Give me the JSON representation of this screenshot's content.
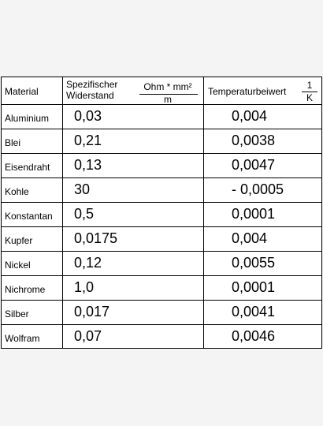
{
  "header": {
    "material": "Material",
    "resistance_line1": "Spezifischer",
    "resistance_line2": "Widerstand",
    "resistance_unit_num": "Ohm * mm²",
    "resistance_unit_den": "m",
    "temp_label": "Temperaturbeiwert",
    "temp_unit_num": "1",
    "temp_unit_den": "K"
  },
  "rows": [
    {
      "material": "Aluminium",
      "resistance": "0,03",
      "temp": "0,004"
    },
    {
      "material": "Blei",
      "resistance": "0,21",
      "temp": "0,0038"
    },
    {
      "material": "Eisendraht",
      "resistance": "0,13",
      "temp": "0,0047"
    },
    {
      "material": "Kohle",
      "resistance": "30",
      "temp": "- 0,0005"
    },
    {
      "material": "Konstantan",
      "resistance": "0,5",
      "temp": "0,0001"
    },
    {
      "material": "Kupfer",
      "resistance": "0,0175",
      "temp": "0,004"
    },
    {
      "material": "Nickel",
      "resistance": "0,12",
      "temp": "0,0055"
    },
    {
      "material": "Nichrome",
      "resistance": "1,0",
      "temp": "0,0001"
    },
    {
      "material": "Silber",
      "resistance": "0,017",
      "temp": "0,0041"
    },
    {
      "material": "Wolfram",
      "resistance": "0,07",
      "temp": "0,0046"
    }
  ]
}
